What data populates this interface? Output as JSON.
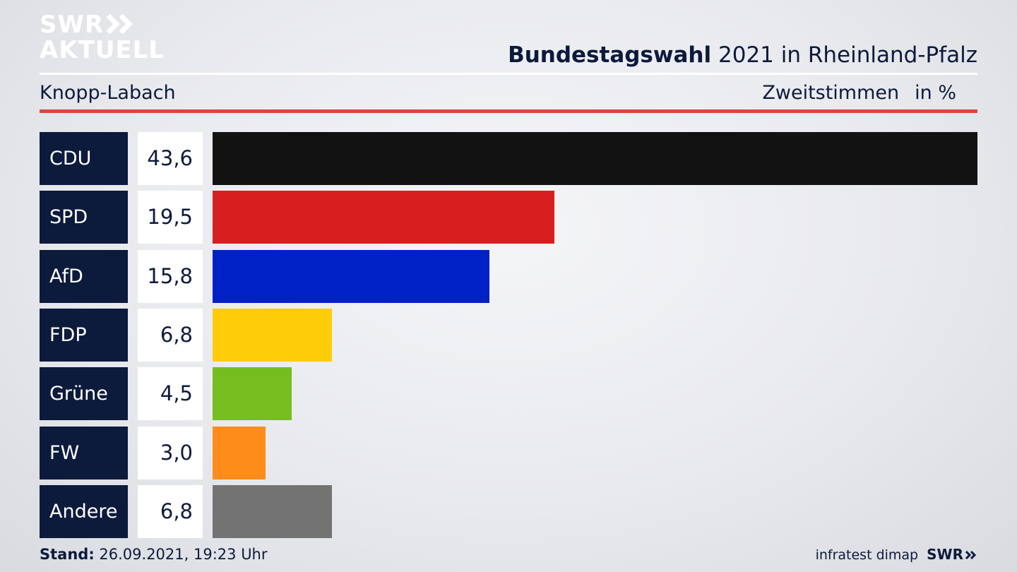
{
  "brand": {
    "logo_line1": "SWR",
    "logo_line2": "AKTUELL",
    "footer_logo": "SWR"
  },
  "header": {
    "title_bold": "Bundestagswahl",
    "title_rest": "2021 in Rheinland-Pfalz",
    "region": "Knopp-Labach",
    "measure": "Zweitstimmen",
    "unit": "in %"
  },
  "footer": {
    "stand_label": "Stand:",
    "stand_value": "26.09.2021, 19:23 Uhr",
    "source": "infratest dimap"
  },
  "chart_data": {
    "type": "bar",
    "orientation": "horizontal",
    "title": "Bundestagswahl 2021 in Rheinland-Pfalz",
    "subtitle": "Knopp-Labach",
    "unit": "in %",
    "categories": [
      "CDU",
      "SPD",
      "AfD",
      "FDP",
      "Grüne",
      "FW",
      "Andere"
    ],
    "values": [
      43.6,
      19.5,
      15.8,
      6.8,
      4.5,
      3.0,
      6.8
    ],
    "value_labels": [
      "43,6",
      "19,5",
      "15,8",
      "6,8",
      "4,5",
      "3,0",
      "6,8"
    ],
    "colors": [
      "#121212",
      "#d71f1f",
      "#0021c6",
      "#ffcc0a",
      "#76be1f",
      "#fe8c1a",
      "#737373"
    ],
    "xlim": [
      0,
      43.6
    ],
    "grid": false,
    "legend": "none"
  }
}
